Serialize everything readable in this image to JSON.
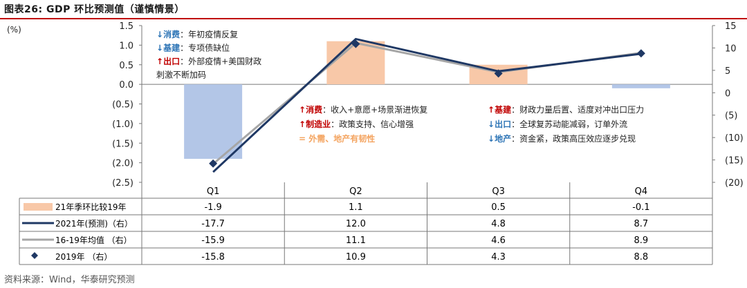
{
  "title": "图表26:   GDP 环比预测值（谨慎情景）",
  "source": "资料来源：Wind，华泰研究预测",
  "unit_label": "(%)",
  "colors": {
    "bar": "#f8c8a8",
    "bar_neg": "#b3c6e7",
    "line2021": "#1f3864",
    "line_avg": "#a6a6a6",
    "marker2019": "#1f3864",
    "red": "#c00000",
    "blue": "#2e75b6",
    "orange": "#f4a460"
  },
  "chart_data": {
    "type": "bar+line",
    "categories": [
      "Q1",
      "Q2",
      "Q3",
      "Q4"
    ],
    "left_axis": {
      "ylim": [
        -2.5,
        1.5
      ],
      "ticks": [
        "1.5",
        "1.0",
        "0.5",
        "0.0",
        "(0.5)",
        "(1.0)",
        "(1.5)",
        "(2.0)",
        "(2.5)"
      ],
      "tick_values": [
        1.5,
        1.0,
        0.5,
        0.0,
        -0.5,
        -1.0,
        -1.5,
        -2.0,
        -2.5
      ]
    },
    "right_axis": {
      "ylim": [
        -20,
        15
      ],
      "ticks": [
        "15",
        "10",
        "5",
        "0",
        "(5)",
        "(10)",
        "(15)",
        "(20)"
      ],
      "tick_values": [
        15,
        10,
        5,
        0,
        -5,
        -10,
        -15,
        -20
      ]
    },
    "series": [
      {
        "name": "21年季环比较19年",
        "type": "bar",
        "axis": "left",
        "values": [
          -1.9,
          1.1,
          0.5,
          -0.1
        ],
        "labels": [
          "-1.9",
          "1.1",
          "0.5",
          "-0.1"
        ]
      },
      {
        "name": "2021年(预测)（右）",
        "type": "line",
        "axis": "right",
        "values": [
          -17.7,
          12.0,
          4.8,
          8.7
        ],
        "labels": [
          "-17.7",
          "12.0",
          "4.8",
          "8.7"
        ]
      },
      {
        "name": "16-19年均值 （右）",
        "type": "line",
        "axis": "right",
        "values": [
          -15.9,
          11.1,
          4.6,
          8.9
        ],
        "labels": [
          "-15.9",
          "11.1",
          "4.6",
          "8.9"
        ]
      },
      {
        "name": "2019年          （右）",
        "type": "marker",
        "axis": "right",
        "values": [
          -15.8,
          10.9,
          4.3,
          8.8
        ],
        "labels": [
          "-15.8",
          "10.9",
          "4.3",
          "8.8"
        ]
      }
    ]
  },
  "annotations": {
    "q1": [
      {
        "arrow": "↓",
        "dir": "down",
        "label": "消费",
        "text": "：年初疫情反复"
      },
      {
        "arrow": "↓",
        "dir": "down",
        "label": "基建",
        "text": "：专项债缺位"
      },
      {
        "arrow": "↑",
        "dir": "up",
        "label": "出口",
        "text": "：外部疫情+美国财政"
      },
      {
        "arrow": "",
        "dir": "none",
        "label": "",
        "text": "刺激不断加码"
      }
    ],
    "q2": [
      {
        "arrow": "↑",
        "dir": "up",
        "label": "消费",
        "text": "：收入+意愿+场景渐进恢复"
      },
      {
        "arrow": "↑",
        "dir": "up",
        "label": "制造业",
        "text": "：政策支持、信心增强"
      },
      {
        "arrow": "=",
        "dir": "eq",
        "label": "外需、地产有韧性",
        "text": ""
      }
    ],
    "q3": [
      {
        "arrow": "↑",
        "dir": "up",
        "label": "基建",
        "text": "：财政力量后置、适度对冲出口压力"
      },
      {
        "arrow": "↓",
        "dir": "down",
        "label": "出口",
        "text": "：全球复苏动能减弱，订单外流"
      },
      {
        "arrow": "↓",
        "dir": "down",
        "label": "地产",
        "text": "：资金紧，政策高压效应逐步兑现"
      }
    ]
  }
}
